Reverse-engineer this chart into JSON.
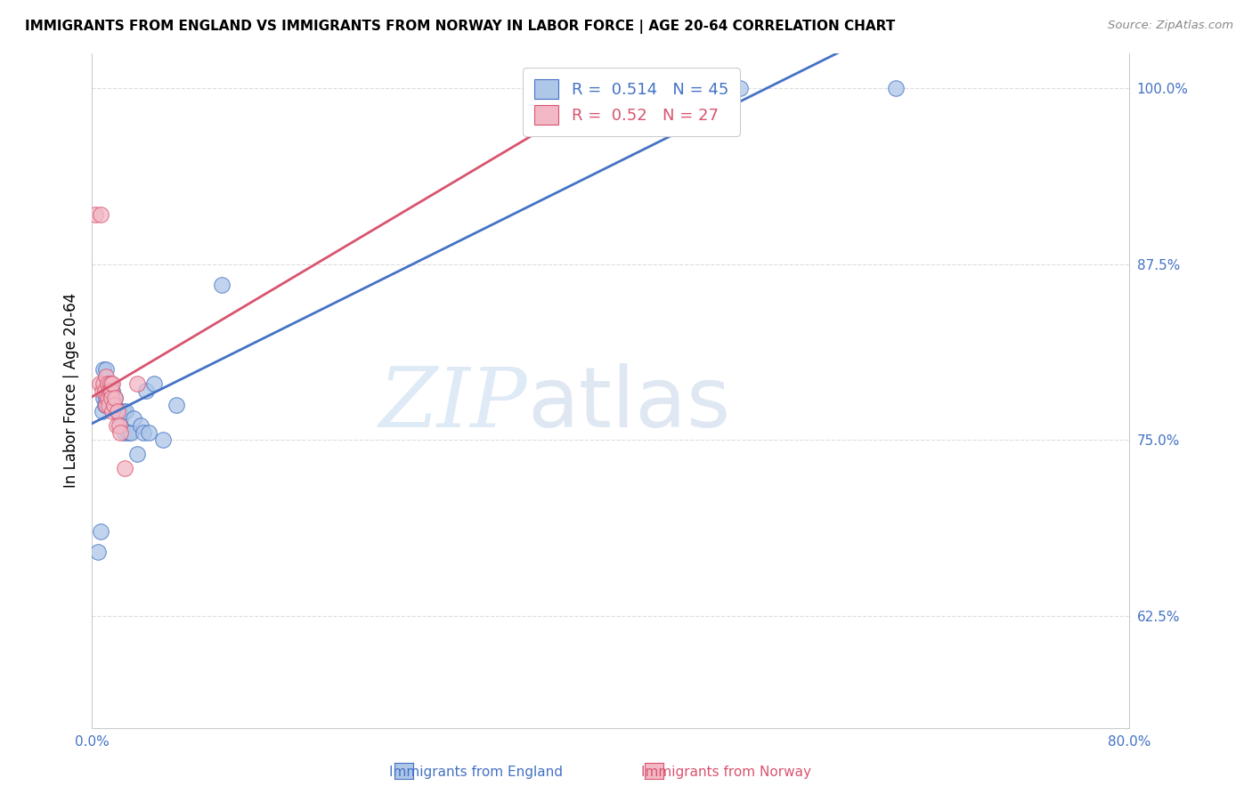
{
  "title": "IMMIGRANTS FROM ENGLAND VS IMMIGRANTS FROM NORWAY IN LABOR FORCE | AGE 20-64 CORRELATION CHART",
  "source": "Source: ZipAtlas.com",
  "ylabel": "In Labor Force | Age 20-64",
  "r_england": 0.514,
  "n_england": 45,
  "r_norway": 0.52,
  "n_norway": 27,
  "xlim": [
    0.0,
    0.8
  ],
  "ylim": [
    0.545,
    1.025
  ],
  "xtick_positions": [
    0.0,
    0.1,
    0.2,
    0.3,
    0.4,
    0.5,
    0.6,
    0.7,
    0.8
  ],
  "xticklabels": [
    "0.0%",
    "",
    "",
    "",
    "",
    "",
    "",
    "",
    "80.0%"
  ],
  "ytick_positions": [
    0.625,
    0.75,
    0.875,
    1.0
  ],
  "yticklabels": [
    "62.5%",
    "75.0%",
    "87.5%",
    "100.0%"
  ],
  "color_england": "#aec6e8",
  "color_norway": "#f2b8c6",
  "line_color_england": "#4472c4",
  "line_color_norway": "#d9546e",
  "england_x": [
    0.005,
    0.007,
    0.008,
    0.009,
    0.009,
    0.01,
    0.01,
    0.011,
    0.011,
    0.012,
    0.012,
    0.013,
    0.013,
    0.013,
    0.014,
    0.014,
    0.015,
    0.015,
    0.016,
    0.016,
    0.017,
    0.017,
    0.018,
    0.019,
    0.02,
    0.021,
    0.022,
    0.024,
    0.025,
    0.026,
    0.028,
    0.03,
    0.032,
    0.035,
    0.038,
    0.04,
    0.042,
    0.044,
    0.048,
    0.055,
    0.065,
    0.1,
    0.38,
    0.5,
    0.62
  ],
  "england_y": [
    0.67,
    0.685,
    0.77,
    0.78,
    0.8,
    0.775,
    0.785,
    0.78,
    0.8,
    0.79,
    0.785,
    0.785,
    0.79,
    0.78,
    0.785,
    0.775,
    0.78,
    0.79,
    0.775,
    0.785,
    0.775,
    0.78,
    0.78,
    0.77,
    0.77,
    0.77,
    0.765,
    0.77,
    0.755,
    0.77,
    0.755,
    0.755,
    0.765,
    0.74,
    0.76,
    0.755,
    0.785,
    0.755,
    0.79,
    0.75,
    0.775,
    0.86,
    1.0,
    1.0,
    1.0
  ],
  "norway_x": [
    0.003,
    0.006,
    0.007,
    0.008,
    0.009,
    0.01,
    0.011,
    0.011,
    0.012,
    0.012,
    0.013,
    0.013,
    0.014,
    0.014,
    0.015,
    0.015,
    0.016,
    0.016,
    0.017,
    0.018,
    0.019,
    0.02,
    0.021,
    0.022,
    0.025,
    0.035,
    0.38
  ],
  "norway_y": [
    0.91,
    0.79,
    0.91,
    0.785,
    0.79,
    0.785,
    0.795,
    0.775,
    0.79,
    0.78,
    0.785,
    0.775,
    0.79,
    0.785,
    0.785,
    0.78,
    0.79,
    0.77,
    0.775,
    0.78,
    0.76,
    0.77,
    0.76,
    0.755,
    0.73,
    0.79,
    1.0
  ]
}
